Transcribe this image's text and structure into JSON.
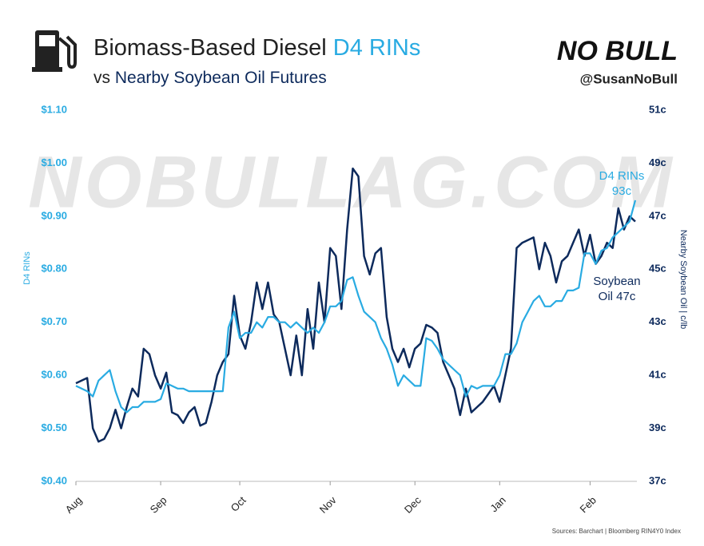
{
  "chart_data": {
    "type": "line",
    "title": "Biomass-Based Diesel ",
    "title_highlight": "D4 RINs",
    "subtitle": "vs ",
    "subtitle_highlight": "Nearby Soybean Oil Futures",
    "brand": "NO BULL",
    "handle": "@SusanNoBull",
    "watermark": "NOBULLAG.COM",
    "source": "Sources: Barchart | Bloomberg RIN4Y0 Index",
    "y_label": "D4 RINs",
    "y2_label": "Nearby Soybean Oil | c/lb",
    "annotations": [
      "D4 RINs",
      "93c",
      "Soybean",
      "Oil 47c"
    ],
    "categories": [
      "Aug",
      null,
      null,
      null,
      null,
      null,
      null,
      null,
      null,
      null,
      null,
      null,
      null,
      null,
      null,
      "Sep",
      null,
      null,
      null,
      null,
      null,
      null,
      null,
      null,
      null,
      null,
      null,
      null,
      null,
      "Oct",
      null,
      null,
      null,
      null,
      null,
      null,
      null,
      null,
      null,
      null,
      null,
      null,
      null,
      null,
      null,
      "Nov",
      null,
      null,
      null,
      null,
      null,
      null,
      null,
      null,
      null,
      null,
      null,
      null,
      null,
      null,
      "Dec",
      null,
      null,
      null,
      null,
      null,
      null,
      null,
      null,
      null,
      null,
      null,
      null,
      null,
      null,
      "Jan",
      null,
      null,
      null,
      null,
      null,
      null,
      null,
      null,
      null,
      null,
      null,
      null,
      null,
      null,
      null,
      "Feb",
      null,
      null,
      null,
      null,
      null,
      null,
      null,
      null
    ],
    "series": [
      {
        "color": "#29abe2",
        "axis": "y",
        "values": [
          0.58,
          0.575,
          0.57,
          0.56,
          0.59,
          0.6,
          0.61,
          0.57,
          0.54,
          0.53,
          0.54,
          0.54,
          0.55,
          0.55,
          0.55,
          0.555,
          0.585,
          0.58,
          0.575,
          0.575,
          0.57,
          0.57,
          0.57,
          0.57,
          0.57,
          0.57,
          0.57,
          0.69,
          0.72,
          0.67,
          0.68,
          0.68,
          0.7,
          0.69,
          0.71,
          0.71,
          0.7,
          0.7,
          0.69,
          0.7,
          0.69,
          0.68,
          0.69,
          0.68,
          0.7,
          0.73,
          0.73,
          0.74,
          0.78,
          0.785,
          0.75,
          0.72,
          0.71,
          0.7,
          0.67,
          0.65,
          0.62,
          0.58,
          0.6,
          0.59,
          0.58,
          0.58,
          0.67,
          0.665,
          0.65,
          0.63,
          0.62,
          0.61,
          0.6,
          0.56,
          0.58,
          0.575,
          0.58,
          0.58,
          0.58,
          0.6,
          0.64,
          0.64,
          0.66,
          0.7,
          0.72,
          0.74,
          0.75,
          0.73,
          0.73,
          0.74,
          0.74,
          0.76,
          0.76,
          0.765,
          0.83,
          0.83,
          0.81,
          0.835,
          0.84,
          0.86,
          0.87,
          0.88,
          0.89,
          0.93
        ]
      },
      {
        "color": "#0d2a5c",
        "axis": "y2",
        "values": [
          40.7,
          40.8,
          40.9,
          39.0,
          38.5,
          38.6,
          39.0,
          39.7,
          39.0,
          39.8,
          40.5,
          40.2,
          42.0,
          41.8,
          41.0,
          40.5,
          41.1,
          39.6,
          39.5,
          39.2,
          39.6,
          39.8,
          39.1,
          39.2,
          40.0,
          41.0,
          41.5,
          41.8,
          44.0,
          42.5,
          42.0,
          43.0,
          44.5,
          43.5,
          44.5,
          43.3,
          43.0,
          42.0,
          41.0,
          42.5,
          41.0,
          43.5,
          42.0,
          44.5,
          43.0,
          45.8,
          45.5,
          43.5,
          46.5,
          48.8,
          48.5,
          45.5,
          44.8,
          45.6,
          45.8,
          43.2,
          42.0,
          41.5,
          42.0,
          41.3,
          42.0,
          42.2,
          42.9,
          42.8,
          42.6,
          41.5,
          41.0,
          40.5,
          39.5,
          40.5,
          39.6,
          39.8,
          40.0,
          40.3,
          40.6,
          40.0,
          41.0,
          42.0,
          45.8,
          46.0,
          46.1,
          46.2,
          45.0,
          46.0,
          45.5,
          44.5,
          45.3,
          45.5,
          46.0,
          46.5,
          45.5,
          46.3,
          45.2,
          45.5,
          46.0,
          45.8,
          47.3,
          46.5,
          47.0,
          46.8
        ]
      }
    ],
    "ylim": [
      0.4,
      1.1
    ],
    "yticks": [
      {
        "value": 0.4,
        "label": "$0.40"
      },
      {
        "value": 0.5,
        "label": "$0.50"
      },
      {
        "value": 0.6,
        "label": "$0.60"
      },
      {
        "value": 0.7,
        "label": "$0.70"
      },
      {
        "value": 0.8,
        "label": "$0.80"
      },
      {
        "value": 0.9,
        "label": "$0.90"
      },
      {
        "value": 1.0,
        "label": "$1.00"
      },
      {
        "value": 1.1,
        "label": "$1.10"
      }
    ],
    "y2lim": [
      37,
      51
    ],
    "y2ticks": [
      {
        "value": 37,
        "label": "37c"
      },
      {
        "value": 39,
        "label": "39c"
      },
      {
        "value": 41,
        "label": "41c"
      },
      {
        "value": 43,
        "label": "43c"
      },
      {
        "value": 45,
        "label": "45c"
      },
      {
        "value": 47,
        "label": "47c"
      },
      {
        "value": 49,
        "label": "49c"
      },
      {
        "value": 51,
        "label": "51c"
      }
    ],
    "grid": false
  }
}
